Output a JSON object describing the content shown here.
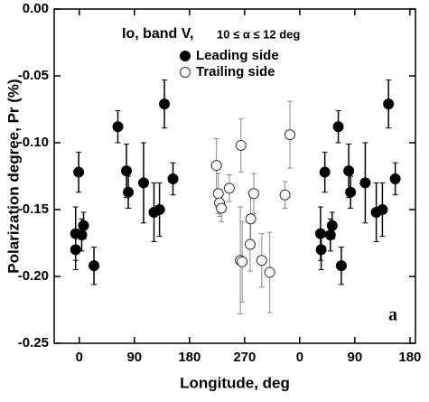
{
  "chart_data": {
    "type": "scatter",
    "title": "Io, band V,",
    "subtitle": "10 ≤ α ≤ 12 deg",
    "xlabel": "Longitude, deg",
    "ylabel": "Polarization degree, Pr (%)",
    "annotation": "a",
    "legend": "top-right",
    "xlim": [
      -41,
      549
    ],
    "ylim": [
      -0.25,
      0
    ],
    "xticks": [
      0,
      90,
      180,
      270,
      {
        "value": 360,
        "label": "0"
      },
      {
        "value": 450,
        "label": "90"
      },
      {
        "value": 540,
        "label": "180"
      }
    ],
    "yticks": [
      {
        "value": 0,
        "label": "0.00"
      },
      {
        "value": -0.05,
        "label": "-0.05"
      },
      {
        "value": -0.1,
        "label": "-0.10"
      },
      {
        "value": -0.15,
        "label": "-0.15"
      },
      {
        "value": -0.2,
        "label": "-0.20"
      },
      {
        "value": -0.25,
        "label": "-0.25"
      }
    ],
    "series": [
      {
        "name": "Leading side",
        "color": "#000000",
        "marker": "filled",
        "x": [
          -6,
          -6,
          -1,
          4,
          7,
          24,
          63,
          77,
          80,
          105,
          122,
          131,
          139,
          153,
          394,
          395,
          401,
          410,
          413,
          428,
          423,
          440,
          443,
          467,
          485,
          495,
          505,
          516
        ],
        "values": [
          -0.168,
          -0.18,
          -0.122,
          -0.169,
          -0.162,
          -0.192,
          -0.088,
          -0.121,
          -0.137,
          -0.13,
          -0.152,
          -0.15,
          -0.071,
          -0.127,
          -0.168,
          -0.18,
          -0.122,
          -0.169,
          -0.162,
          -0.192,
          -0.088,
          -0.121,
          -0.137,
          -0.13,
          -0.152,
          -0.15,
          -0.071,
          -0.127
        ],
        "errors": [
          0.02,
          0.015,
          0.015,
          0.012,
          0.01,
          0.014,
          0.012,
          0.02,
          0.012,
          0.03,
          0.022,
          0.02,
          0.018,
          0.012,
          0.02,
          0.015,
          0.015,
          0.012,
          0.01,
          0.014,
          0.012,
          0.02,
          0.012,
          0.03,
          0.022,
          0.02,
          0.018,
          0.012
        ]
      },
      {
        "name": "Trailing side",
        "color": "#888888",
        "marker": "open",
        "x": [
          224,
          227,
          229,
          232,
          245,
          264,
          263,
          266,
          280,
          279,
          285,
          298,
          311,
          336,
          344
        ],
        "values": [
          -0.117,
          -0.138,
          -0.145,
          -0.149,
          -0.134,
          -0.102,
          -0.188,
          -0.189,
          -0.157,
          -0.176,
          -0.138,
          -0.188,
          -0.197,
          -0.139,
          -0.094
        ],
        "errors": [
          0.02,
          0.015,
          0.01,
          0.01,
          0.01,
          0.02,
          0.04,
          0.03,
          0.02,
          0.02,
          0.015,
          0.02,
          0.03,
          0.01,
          0.025
        ]
      }
    ]
  }
}
